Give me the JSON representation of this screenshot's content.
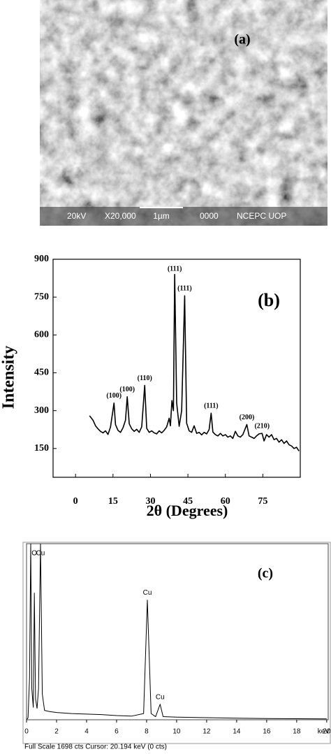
{
  "sem_image": {
    "label": "(a)",
    "footer": [
      "20kV",
      "X20,000",
      "1µm",
      "0000",
      "NCEPC UOP"
    ]
  },
  "chart_data": [
    {
      "type": "line",
      "label": "(b)",
      "ylabel": "Intensity",
      "xlabel": "2θ (Degrees)",
      "color": "#000000",
      "xlim": [
        -9,
        90
      ],
      "ylim": [
        36,
        900
      ],
      "xticks": [
        0,
        15,
        30,
        45,
        60,
        75
      ],
      "yticks": [
        150,
        300,
        450,
        600,
        750,
        900
      ],
      "x": [
        5.6,
        7,
        8,
        9,
        10,
        11,
        12,
        13,
        14,
        15.4,
        16,
        17,
        18,
        19,
        20,
        20.7,
        21.5,
        22.5,
        23.5,
        24.5,
        25.5,
        26.5,
        27.7,
        28.5,
        29.5,
        30.5,
        31.5,
        32.5,
        33.5,
        34.5,
        35.5,
        36.5,
        37.5,
        38,
        38.6,
        39.2,
        39.7,
        40.5,
        41.5,
        42.5,
        43.7,
        44.5,
        45.5,
        46.5,
        47.5,
        48.5,
        49.5,
        50.5,
        51.5,
        52.5,
        53.5,
        54.3,
        55,
        56,
        57,
        58,
        59,
        60,
        61,
        62,
        63,
        64,
        65,
        66,
        67,
        68.6,
        69.5,
        70.5,
        71.5,
        72.5,
        73.5,
        74.7,
        75.5,
        76.5,
        77.5,
        78.5,
        79.5,
        80.5,
        81.5,
        82.5,
        83.5,
        84.5,
        85.5,
        86.5,
        87.5,
        88.5,
        89.5
      ],
      "values": [
        280,
        262,
        240,
        228,
        218,
        212,
        220,
        206,
        235,
        330,
        245,
        222,
        214,
        232,
        262,
        355,
        248,
        228,
        218,
        226,
        214,
        236,
        400,
        230,
        214,
        220,
        212,
        208,
        220,
        212,
        222,
        236,
        270,
        240,
        340,
        300,
        840,
        330,
        238,
        300,
        755,
        250,
        220,
        214,
        240,
        210,
        214,
        204,
        214,
        208,
        225,
        290,
        215,
        205,
        200,
        210,
        200,
        205,
        195,
        200,
        190,
        218,
        200,
        195,
        205,
        245,
        200,
        195,
        190,
        200,
        208,
        210,
        180,
        205,
        195,
        205,
        185,
        190,
        175,
        185,
        170,
        180,
        165,
        160,
        150,
        155,
        140
      ],
      "annotations": [
        {
          "text": "(100)",
          "x": 15.4
        },
        {
          "text": "(100)",
          "x": 20.7
        },
        {
          "text": "(110)",
          "x": 27.7
        },
        {
          "text": "(111)",
          "x": 39.7
        },
        {
          "text": "(111)",
          "x": 43.7
        },
        {
          "text": "(111)",
          "x": 54.3
        },
        {
          "text": "(200)",
          "x": 68.6
        },
        {
          "text": "(210)",
          "x": 74.7
        }
      ]
    },
    {
      "type": "line",
      "label": "(c)",
      "xunit": "keV",
      "footer": "Full Scale 1698 cts Cursor: 20.194 keV (0 cts)",
      "color": "#000000",
      "xlim": [
        0,
        20.1
      ],
      "ylim": [
        0,
        1698
      ],
      "xticks": [
        0,
        2,
        4,
        6,
        8,
        10,
        12,
        14,
        16,
        18,
        20
      ],
      "x": [
        0,
        0.1,
        0.2,
        0.28,
        0.35,
        0.45,
        0.52,
        0.6,
        0.7,
        0.8,
        0.93,
        1.05,
        1.2,
        1.5,
        2,
        3,
        4,
        5,
        6,
        7,
        7.8,
        8.05,
        8.3,
        8.6,
        8.9,
        9.1,
        10,
        12,
        14,
        16,
        18,
        20
      ],
      "values": [
        0,
        20,
        400,
        1698,
        300,
        120,
        1222,
        200,
        110,
        300,
        1698,
        250,
        90,
        80,
        70,
        60,
        55,
        50,
        40,
        35,
        60,
        1155,
        60,
        30,
        150,
        30,
        25,
        20,
        15,
        12,
        10,
        8
      ],
      "annotations": [
        {
          "text": "O",
          "x": 0.52
        },
        {
          "text": "Cu",
          "x": 0.93
        },
        {
          "text": "Cu",
          "x": 8.05
        },
        {
          "text": "Cu",
          "x": 8.9
        }
      ]
    }
  ]
}
